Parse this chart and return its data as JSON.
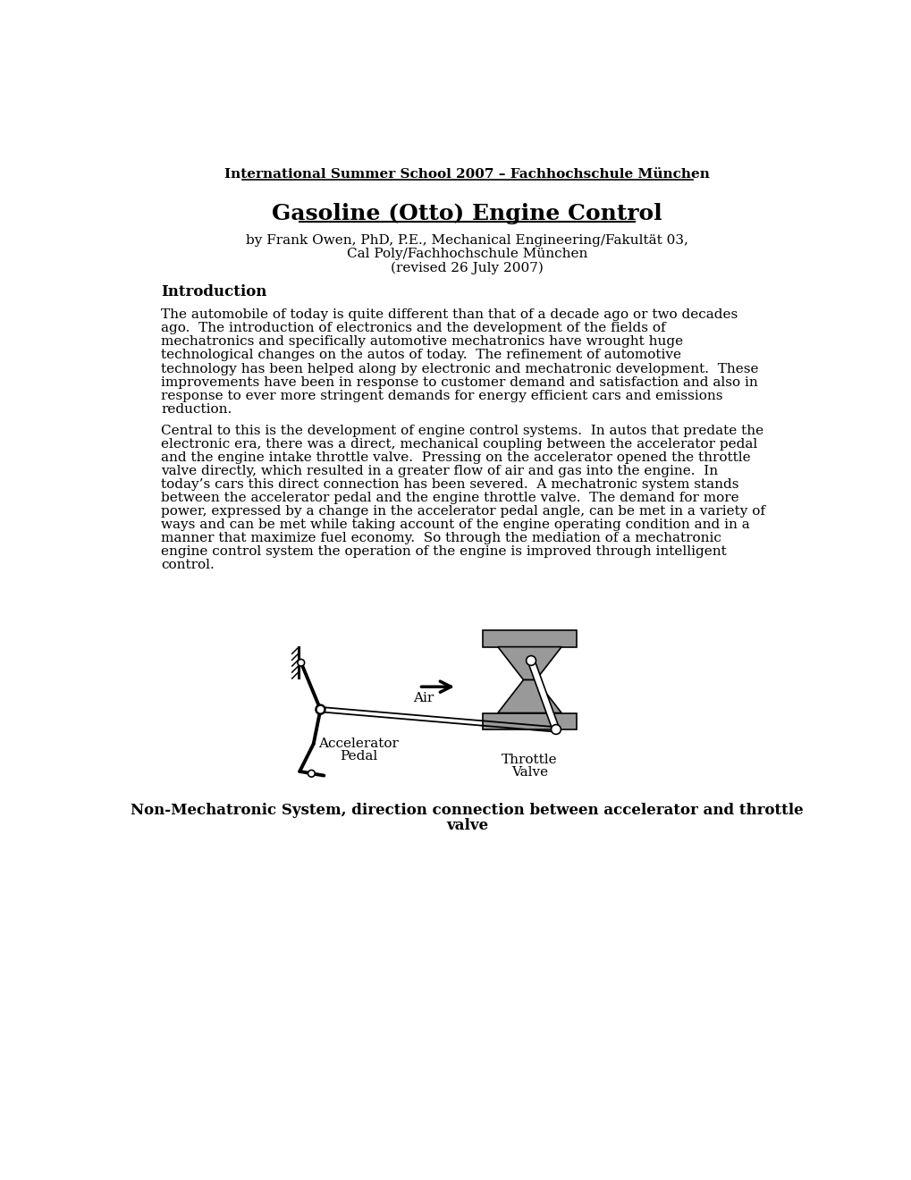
{
  "header": "International Summer School 2007 – Fachhochschule München",
  "title": "Gasoline (Otto) Engine Control",
  "author_line1": "by Frank Owen, PhD, P.E., Mechanical Engineering/Fakultät 03,",
  "author_line2": "Cal Poly/Fachhochschule München",
  "author_line3": "(revised 26 July 2007)",
  "section_intro": "Introduction",
  "para1": "The automobile of today is quite different than that of a decade ago or two decades\nago.  The introduction of electronics and the development of the fields of\nmechatronics and specifically automotive mechatronics have wrought huge\ntechnological changes on the autos of today.  The refinement of automotive\ntechnology has been helped along by electronic and mechatronic development.  These\nimprovements have been in response to customer demand and satisfaction and also in\nresponse to ever more stringent demands for energy efficient cars and emissions\nreduction.",
  "para2": "Central to this is the development of engine control systems.  In autos that predate the\nelectronic era, there was a direct, mechanical coupling between the accelerator pedal\nand the engine intake throttle valve.  Pressing on the accelerator opened the throttle\nvalve directly, which resulted in a greater flow of air and gas into the engine.  In\ntoday’s cars this direct connection has been severed.  A mechatronic system stands\nbetween the accelerator pedal and the engine throttle valve.  The demand for more\npower, expressed by a change in the accelerator pedal angle, can be met in a variety of\nways and can be met while taking account of the engine operating condition and in a\nmanner that maximize fuel economy.  So through the mediation of a mechatronic\nengine control system the operation of the engine is improved through intelligent\ncontrol.",
  "caption_line1": "Non-Mechatronic System, direction connection between accelerator and throttle",
  "caption_line2": "valve",
  "bg_color": "#ffffff",
  "text_color": "#000000",
  "gray_color": "#999999"
}
